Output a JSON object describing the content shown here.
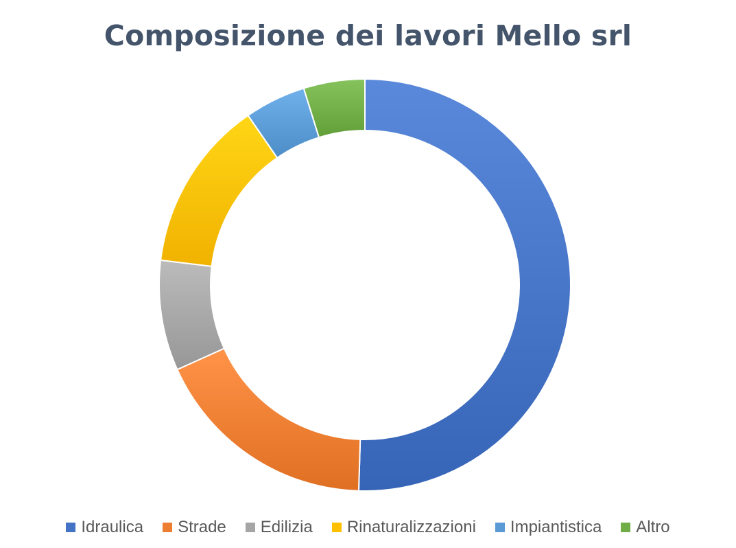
{
  "chart_data": {
    "type": "pie",
    "variant": "donut",
    "title": "Composizione dei lavori Mello srl",
    "categories": [
      "Idraulica",
      "Strade",
      "Edilizia",
      "Rinaturalizzazioni",
      "Impiantistica",
      "Altro"
    ],
    "values": [
      52.5,
      18.5,
      9,
      14,
      5,
      5
    ],
    "colors": [
      "#4472c4",
      "#ed7d31",
      "#a5a5a5",
      "#ffc000",
      "#5b9bd5",
      "#70ad47"
    ],
    "legend_position": "bottom",
    "start_angle": "top, clockwise"
  }
}
